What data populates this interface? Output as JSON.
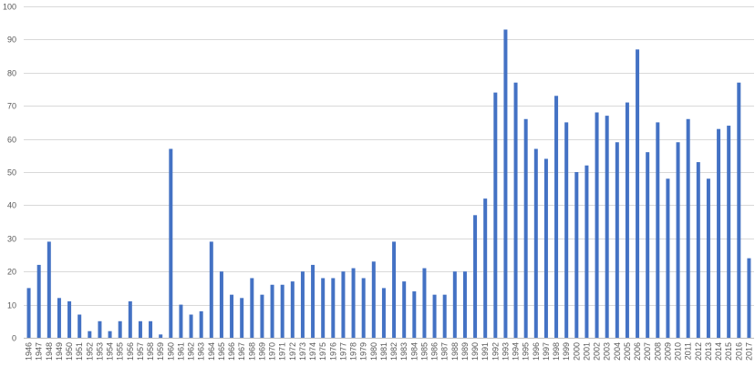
{
  "chart_data": {
    "type": "bar",
    "title": "",
    "xlabel": "",
    "ylabel": "",
    "ylim": [
      0,
      100
    ],
    "yticks": [
      0,
      10,
      20,
      30,
      40,
      50,
      60,
      70,
      80,
      90,
      100
    ],
    "grid": true,
    "legend": "none",
    "bar_color": "#4472c4",
    "categories": [
      "1946",
      "1947",
      "1948",
      "1949",
      "1950",
      "1951",
      "1952",
      "1953",
      "1954",
      "1955",
      "1956",
      "1957",
      "1958",
      "1959",
      "1960",
      "1961",
      "1962",
      "1963",
      "1964",
      "1965",
      "1966",
      "1967",
      "1968",
      "1969",
      "1970",
      "1971",
      "1972",
      "1973",
      "1974",
      "1975",
      "1976",
      "1977",
      "1978",
      "1979",
      "1980",
      "1981",
      "1982",
      "1983",
      "1984",
      "1985",
      "1986",
      "1987",
      "1988",
      "1989",
      "1990",
      "1991",
      "1992",
      "1993",
      "1994",
      "1995",
      "1996",
      "1997",
      "1998",
      "1999",
      "2000",
      "2001",
      "2002",
      "2003",
      "2004",
      "2005",
      "2006",
      "2007",
      "2008",
      "2009",
      "2010",
      "2011",
      "2012",
      "2013",
      "2014",
      "2015",
      "2016",
      "2017"
    ],
    "values": [
      15,
      22,
      29,
      12,
      11,
      7,
      2,
      5,
      2,
      5,
      11,
      5,
      5,
      1,
      57,
      10,
      7,
      8,
      29,
      20,
      13,
      12,
      18,
      13,
      16,
      16,
      17,
      20,
      22,
      18,
      18,
      20,
      21,
      18,
      23,
      15,
      29,
      17,
      14,
      21,
      13,
      13,
      20,
      20,
      37,
      42,
      74,
      93,
      77,
      66,
      57,
      54,
      73,
      65,
      50,
      52,
      68,
      67,
      59,
      71,
      87,
      56,
      65,
      48,
      59,
      66,
      53,
      48,
      63,
      64,
      77,
      24
    ]
  }
}
